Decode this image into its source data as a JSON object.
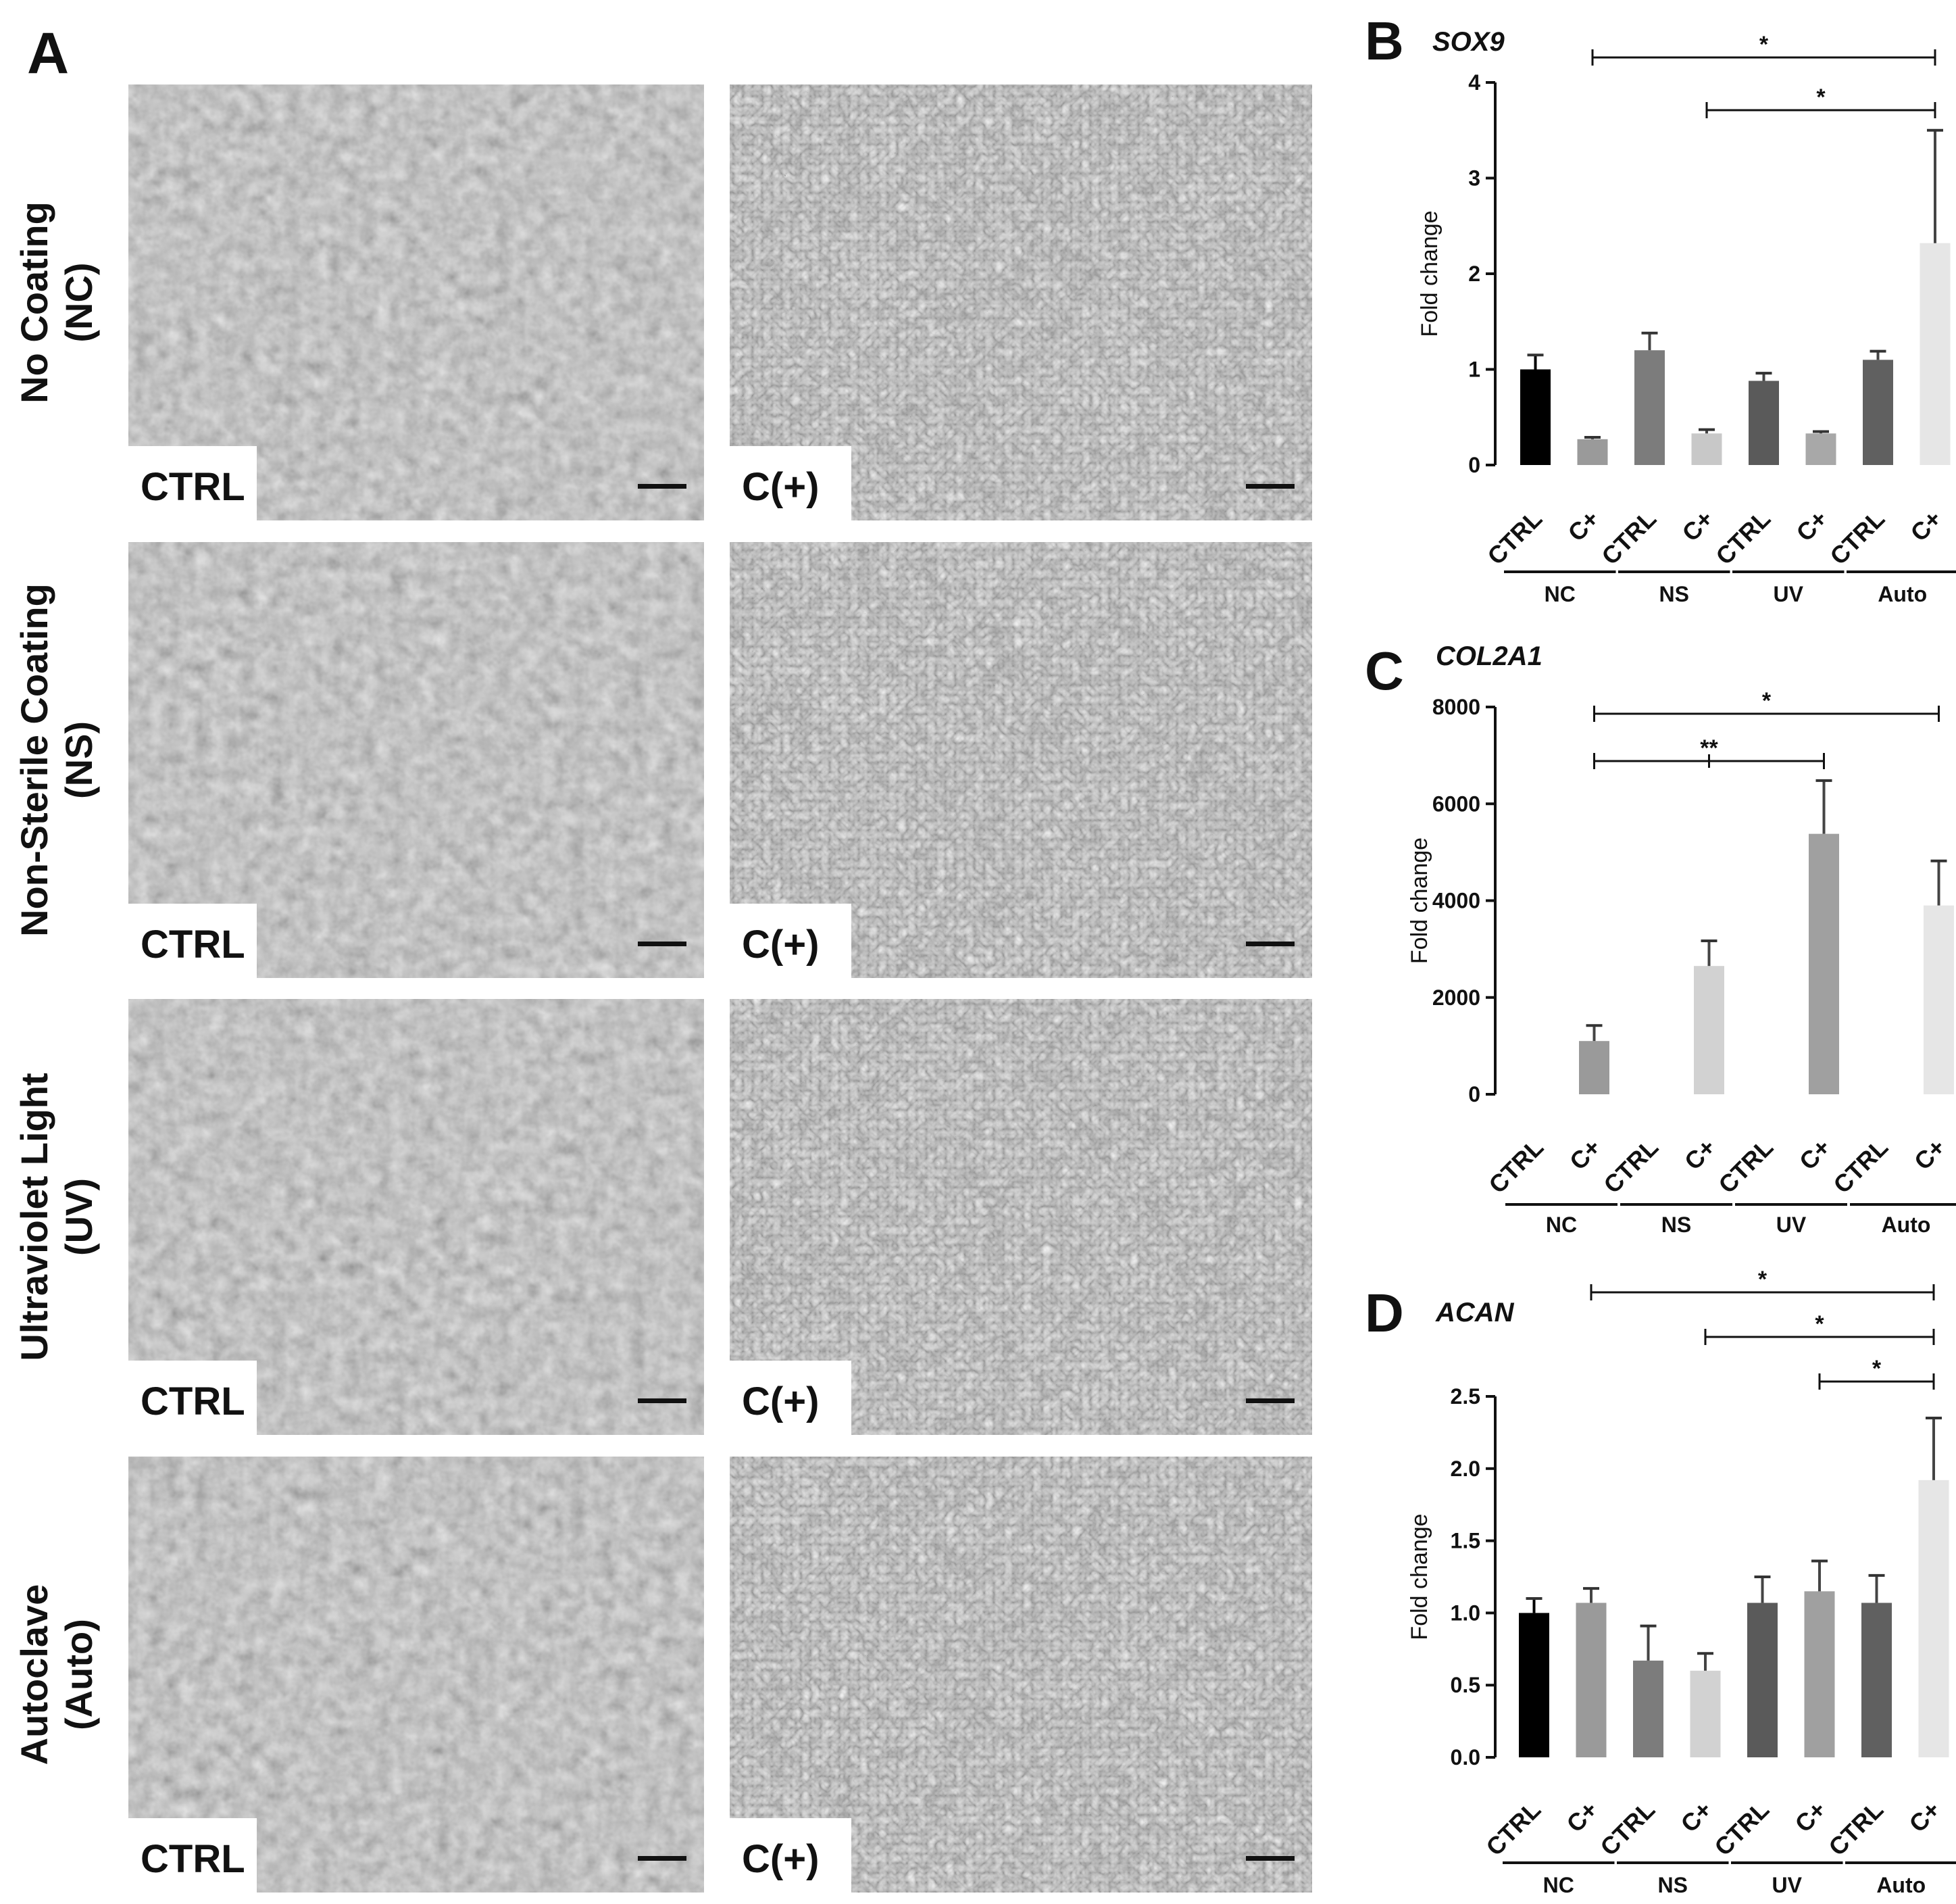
{
  "panel_a": {
    "letter": "A",
    "rows": [
      {
        "label_lines": [
          "No Coating",
          "(NC)"
        ],
        "left_label": "CTRL",
        "right_label": "C(+)"
      },
      {
        "label_lines": [
          "Non-Sterile Coating",
          "(NS)"
        ],
        "left_label": "CTRL",
        "right_label": "C(+)"
      },
      {
        "label_lines": [
          "Ultraviolet Light",
          "(UV)"
        ],
        "left_label": "CTRL",
        "right_label": "C(+)"
      },
      {
        "label_lines": [
          "Autoclave",
          "(Auto)"
        ],
        "left_label": "CTRL",
        "right_label": "C(+)"
      }
    ],
    "colors": {
      "micrograph_base": "#8f8f8f",
      "cells_texture": "#b8b8b8",
      "scale_bar": "#111111"
    }
  },
  "chart_data": [
    {
      "panel": "B",
      "type": "bar",
      "title": "SOX9",
      "ylabel": "Fold change",
      "ylim": [
        0,
        4
      ],
      "yticks": [
        "0",
        "1",
        "2",
        "3",
        "4"
      ],
      "ytick_values": [
        0,
        1,
        2,
        3,
        4
      ],
      "groups": [
        "NC",
        "NS",
        "UV",
        "Auto"
      ],
      "categories": [
        "CTRL",
        "C+",
        "CTRL",
        "C+",
        "CTRL",
        "C+",
        "CTRL",
        "C+"
      ],
      "values": [
        1.0,
        0.27,
        1.2,
        0.33,
        0.88,
        0.33,
        1.1,
        2.32
      ],
      "errors": [
        0.15,
        0.02,
        0.18,
        0.04,
        0.08,
        0.02,
        0.09,
        1.18
      ],
      "colors": [
        "#000000",
        "#9a9a9a",
        "#7c7c7c",
        "#c8c8c8",
        "#5a5a5a",
        "#a8a8a8",
        "#606060",
        "#e6e6e6"
      ],
      "significance": [
        {
          "from": 1,
          "to": 7,
          "label": "*",
          "tick_mid": false
        },
        {
          "from": 3,
          "to": 7,
          "label": "*",
          "tick_mid": false
        }
      ]
    },
    {
      "panel": "C",
      "type": "bar",
      "title": "COL2A1",
      "ylabel": "Fold change",
      "ylim": [
        0,
        8000
      ],
      "yticks": [
        "0",
        "2000",
        "4000",
        "6000",
        "8000"
      ],
      "ytick_values": [
        0,
        2000,
        4000,
        6000,
        8000
      ],
      "groups": [
        "NC",
        "NS",
        "UV",
        "Auto"
      ],
      "categories": [
        "CTRL",
        "C+",
        "CTRL",
        "C+",
        "CTRL",
        "C+",
        "CTRL",
        "C+"
      ],
      "values": [
        0,
        1100,
        0,
        2650,
        0,
        5380,
        0,
        3900
      ],
      "errors": [
        0,
        320,
        0,
        520,
        0,
        1100,
        0,
        920
      ],
      "colors": [
        "#000000",
        "#9a9a9a",
        "#7c7c7c",
        "#d2d2d2",
        "#5a5a5a",
        "#a0a0a0",
        "#606060",
        "#e6e6e6"
      ],
      "significance": [
        {
          "from": 1,
          "to": 7,
          "label": "*",
          "tick_mid": false
        },
        {
          "from": 1,
          "to": 5,
          "label": "**",
          "tick_mid": true
        }
      ]
    },
    {
      "panel": "D",
      "type": "bar",
      "title": "ACAN",
      "ylabel": "Fold change",
      "ylim": [
        0,
        2.5
      ],
      "yticks": [
        "0.0",
        "0.5",
        "1.0",
        "1.5",
        "2.0",
        "2.5"
      ],
      "ytick_values": [
        0,
        0.5,
        1.0,
        1.5,
        2.0,
        2.5
      ],
      "groups": [
        "NC",
        "NS",
        "UV",
        "Auto"
      ],
      "categories": [
        "CTRL",
        "C+",
        "CTRL",
        "C+",
        "CTRL",
        "C+",
        "CTRL",
        "C+"
      ],
      "values": [
        1.0,
        1.07,
        0.67,
        0.6,
        1.07,
        1.15,
        1.07,
        1.92
      ],
      "errors": [
        0.1,
        0.1,
        0.24,
        0.12,
        0.18,
        0.21,
        0.19,
        0.43
      ],
      "colors": [
        "#000000",
        "#9a9a9a",
        "#7c7c7c",
        "#d2d2d2",
        "#5a5a5a",
        "#a0a0a0",
        "#606060",
        "#e6e6e6"
      ],
      "significance": [
        {
          "from": 1,
          "to": 7,
          "label": "*",
          "tick_mid": false
        },
        {
          "from": 3,
          "to": 7,
          "label": "*",
          "tick_mid": false
        },
        {
          "from": 5,
          "to": 7,
          "label": "*",
          "tick_mid": false
        }
      ]
    }
  ]
}
